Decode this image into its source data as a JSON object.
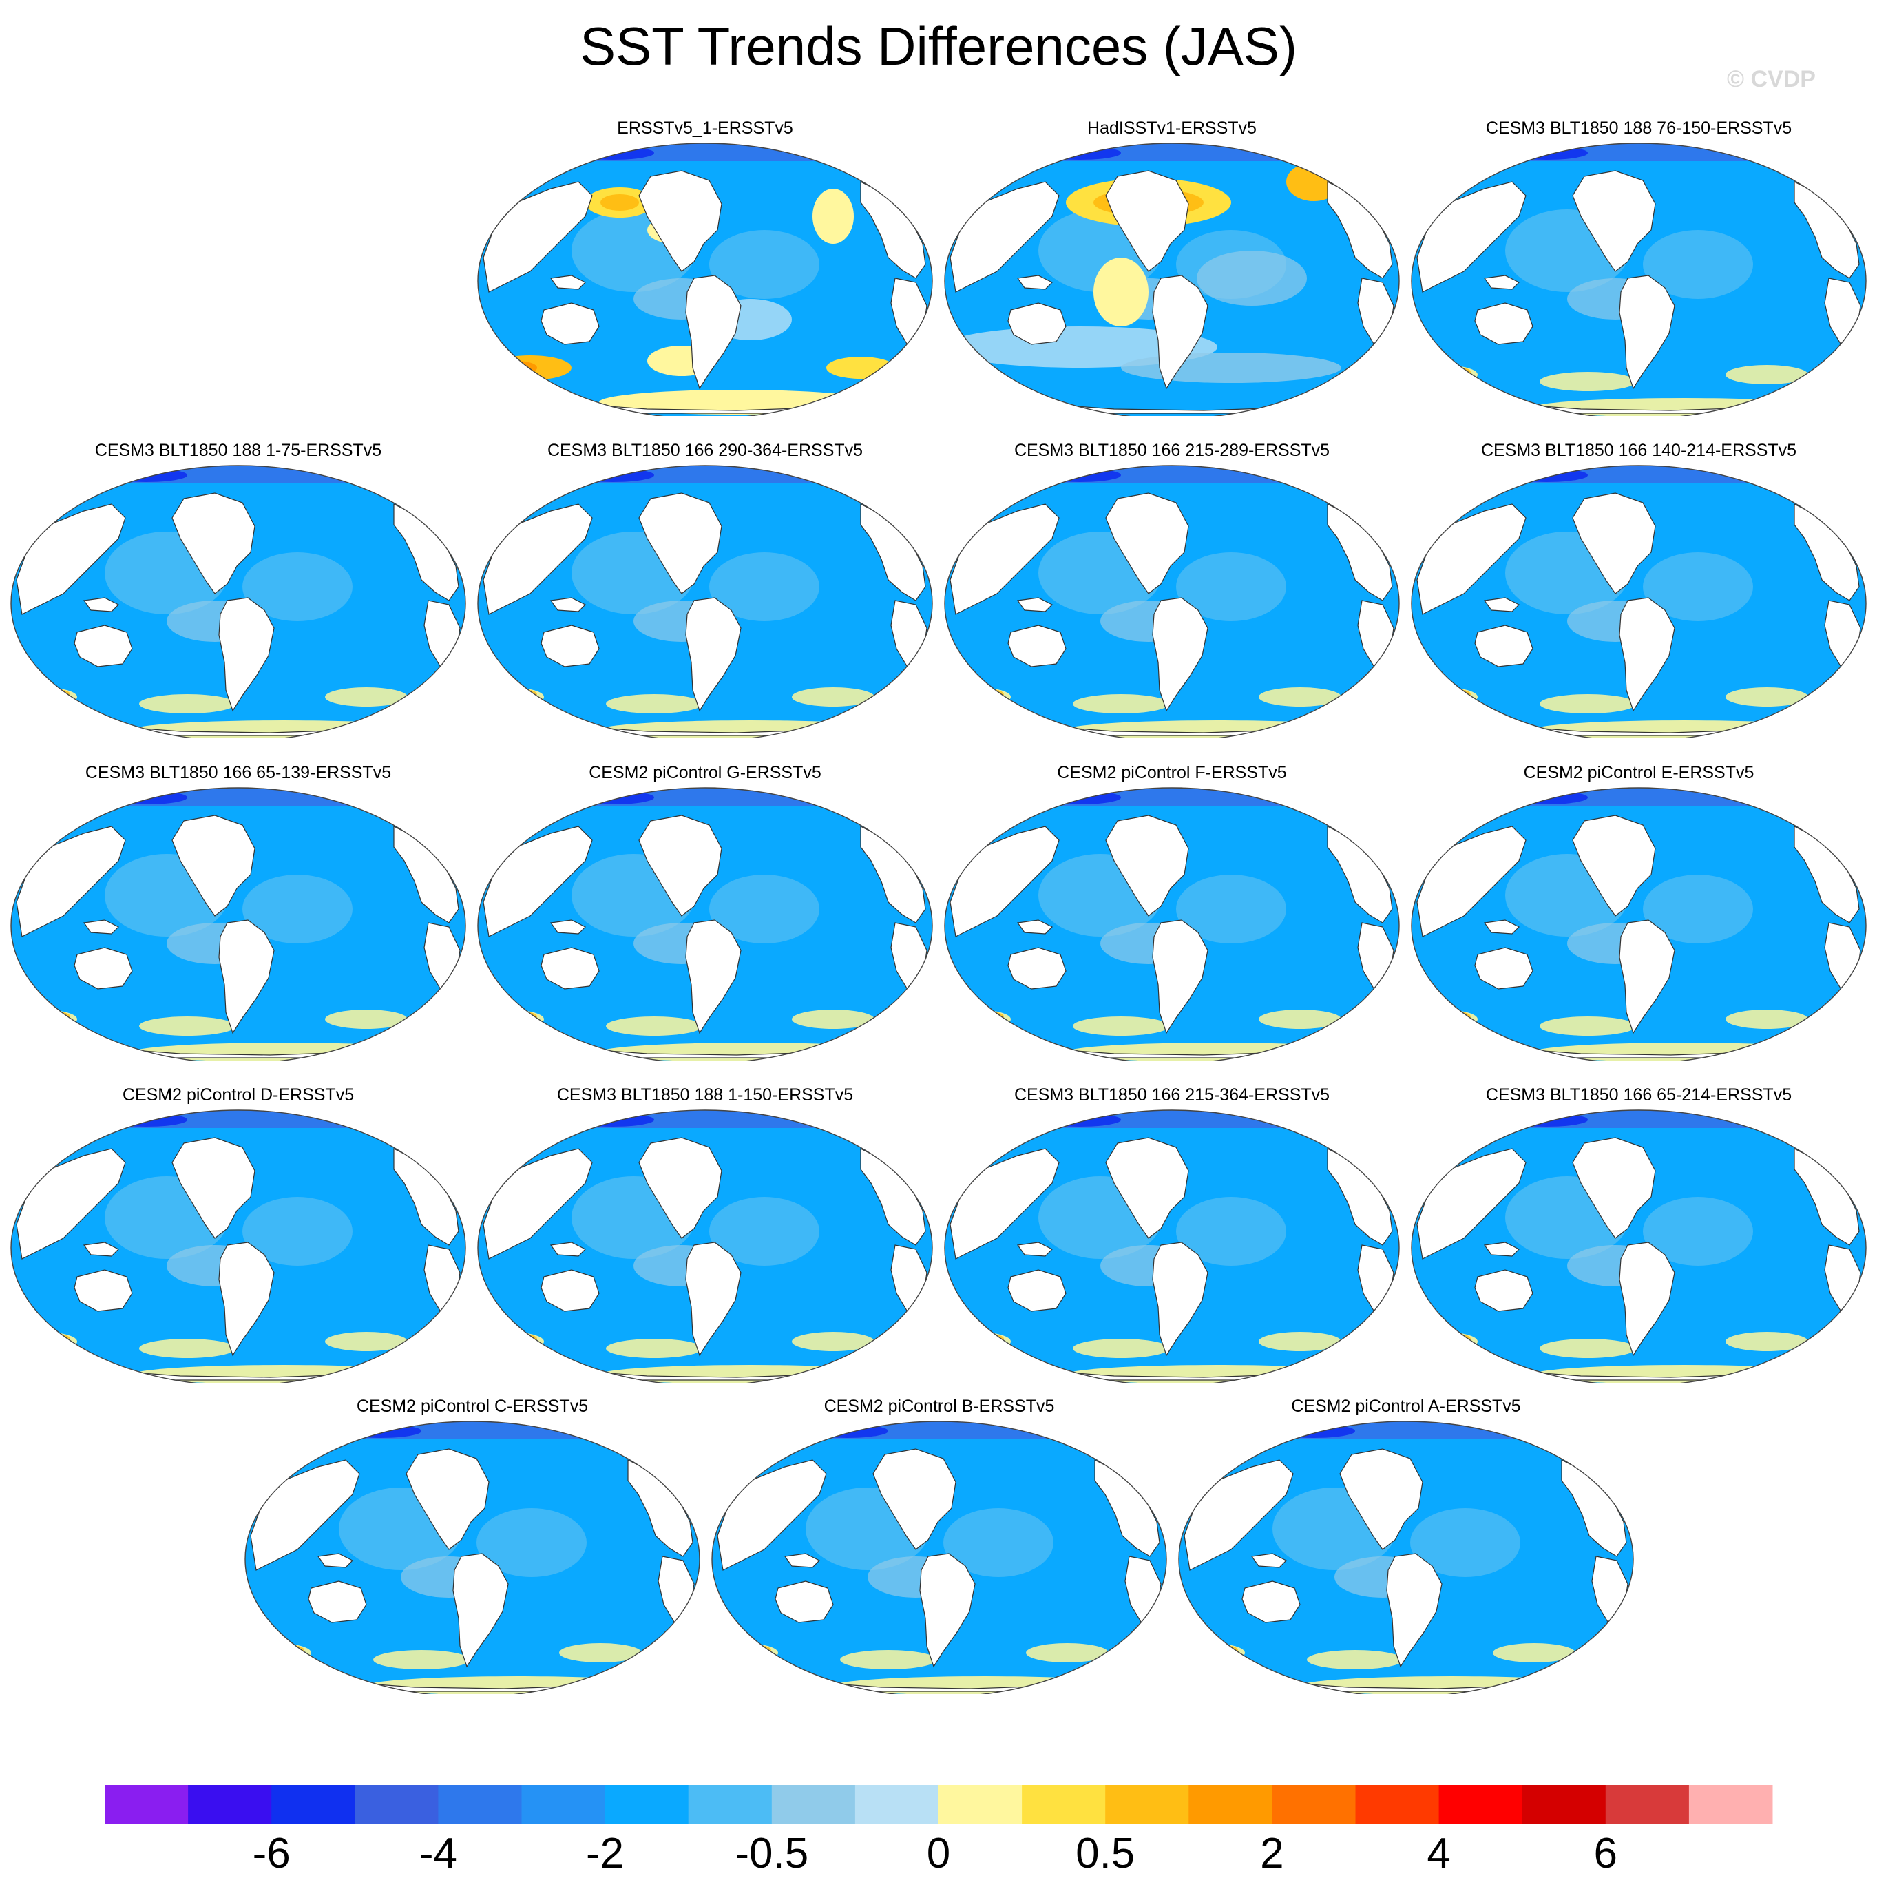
{
  "chart_data": {
    "type": "map-grid",
    "title": "SST Trends Differences (JAS)",
    "watermark": "© CVDP",
    "colorbar": {
      "colors": [
        "#8a1ef0",
        "#3a0ef0",
        "#1030f0",
        "#3a60e0",
        "#2e78ec",
        "#2592f5",
        "#0aa9ff",
        "#4cbcf5",
        "#90cbea",
        "#b8e0f5",
        "#fff79e",
        "#ffe140",
        "#ffbe14",
        "#ff9a00",
        "#ff7100",
        "#ff3a00",
        "#ff0000",
        "#d40000",
        "#d83a3a",
        "#ffb0b0"
      ],
      "tick_labels": [
        "-6",
        "-4",
        "-2",
        "-0.5",
        "0",
        "0.5",
        "2",
        "4",
        "6"
      ]
    },
    "panels": [
      {
        "title": "ERSSTv5_1-ERSSTv5",
        "style": "obs1"
      },
      {
        "title": "HadISSTv1-ERSSTv5",
        "style": "obs2"
      },
      {
        "title": "CESM3 BLT1850 188 76-150-ERSSTv5",
        "style": "model"
      },
      {
        "title": "CESM3 BLT1850 188 1-75-ERSSTv5",
        "style": "model"
      },
      {
        "title": "CESM3 BLT1850 166 290-364-ERSSTv5",
        "style": "model"
      },
      {
        "title": "CESM3 BLT1850 166 215-289-ERSSTv5",
        "style": "model"
      },
      {
        "title": "CESM3 BLT1850 166 140-214-ERSSTv5",
        "style": "model"
      },
      {
        "title": "CESM3 BLT1850 166 65-139-ERSSTv5",
        "style": "model"
      },
      {
        "title": "CESM2 piControl G-ERSSTv5",
        "style": "model"
      },
      {
        "title": "CESM2 piControl F-ERSSTv5",
        "style": "model"
      },
      {
        "title": "CESM2 piControl E-ERSSTv5",
        "style": "model"
      },
      {
        "title": "CESM2 piControl D-ERSSTv5",
        "style": "model"
      },
      {
        "title": "CESM3 BLT1850 188 1-150-ERSSTv5",
        "style": "model"
      },
      {
        "title": "CESM3 BLT1850 166 215-364-ERSSTv5",
        "style": "model"
      },
      {
        "title": "CESM3 BLT1850 166 65-214-ERSSTv5",
        "style": "model"
      },
      {
        "title": "CESM2 piControl C-ERSSTv5",
        "style": "model"
      },
      {
        "title": "CESM2 piControl B-ERSSTv5",
        "style": "model"
      },
      {
        "title": "CESM2 piControl A-ERSSTv5",
        "style": "model"
      }
    ]
  }
}
